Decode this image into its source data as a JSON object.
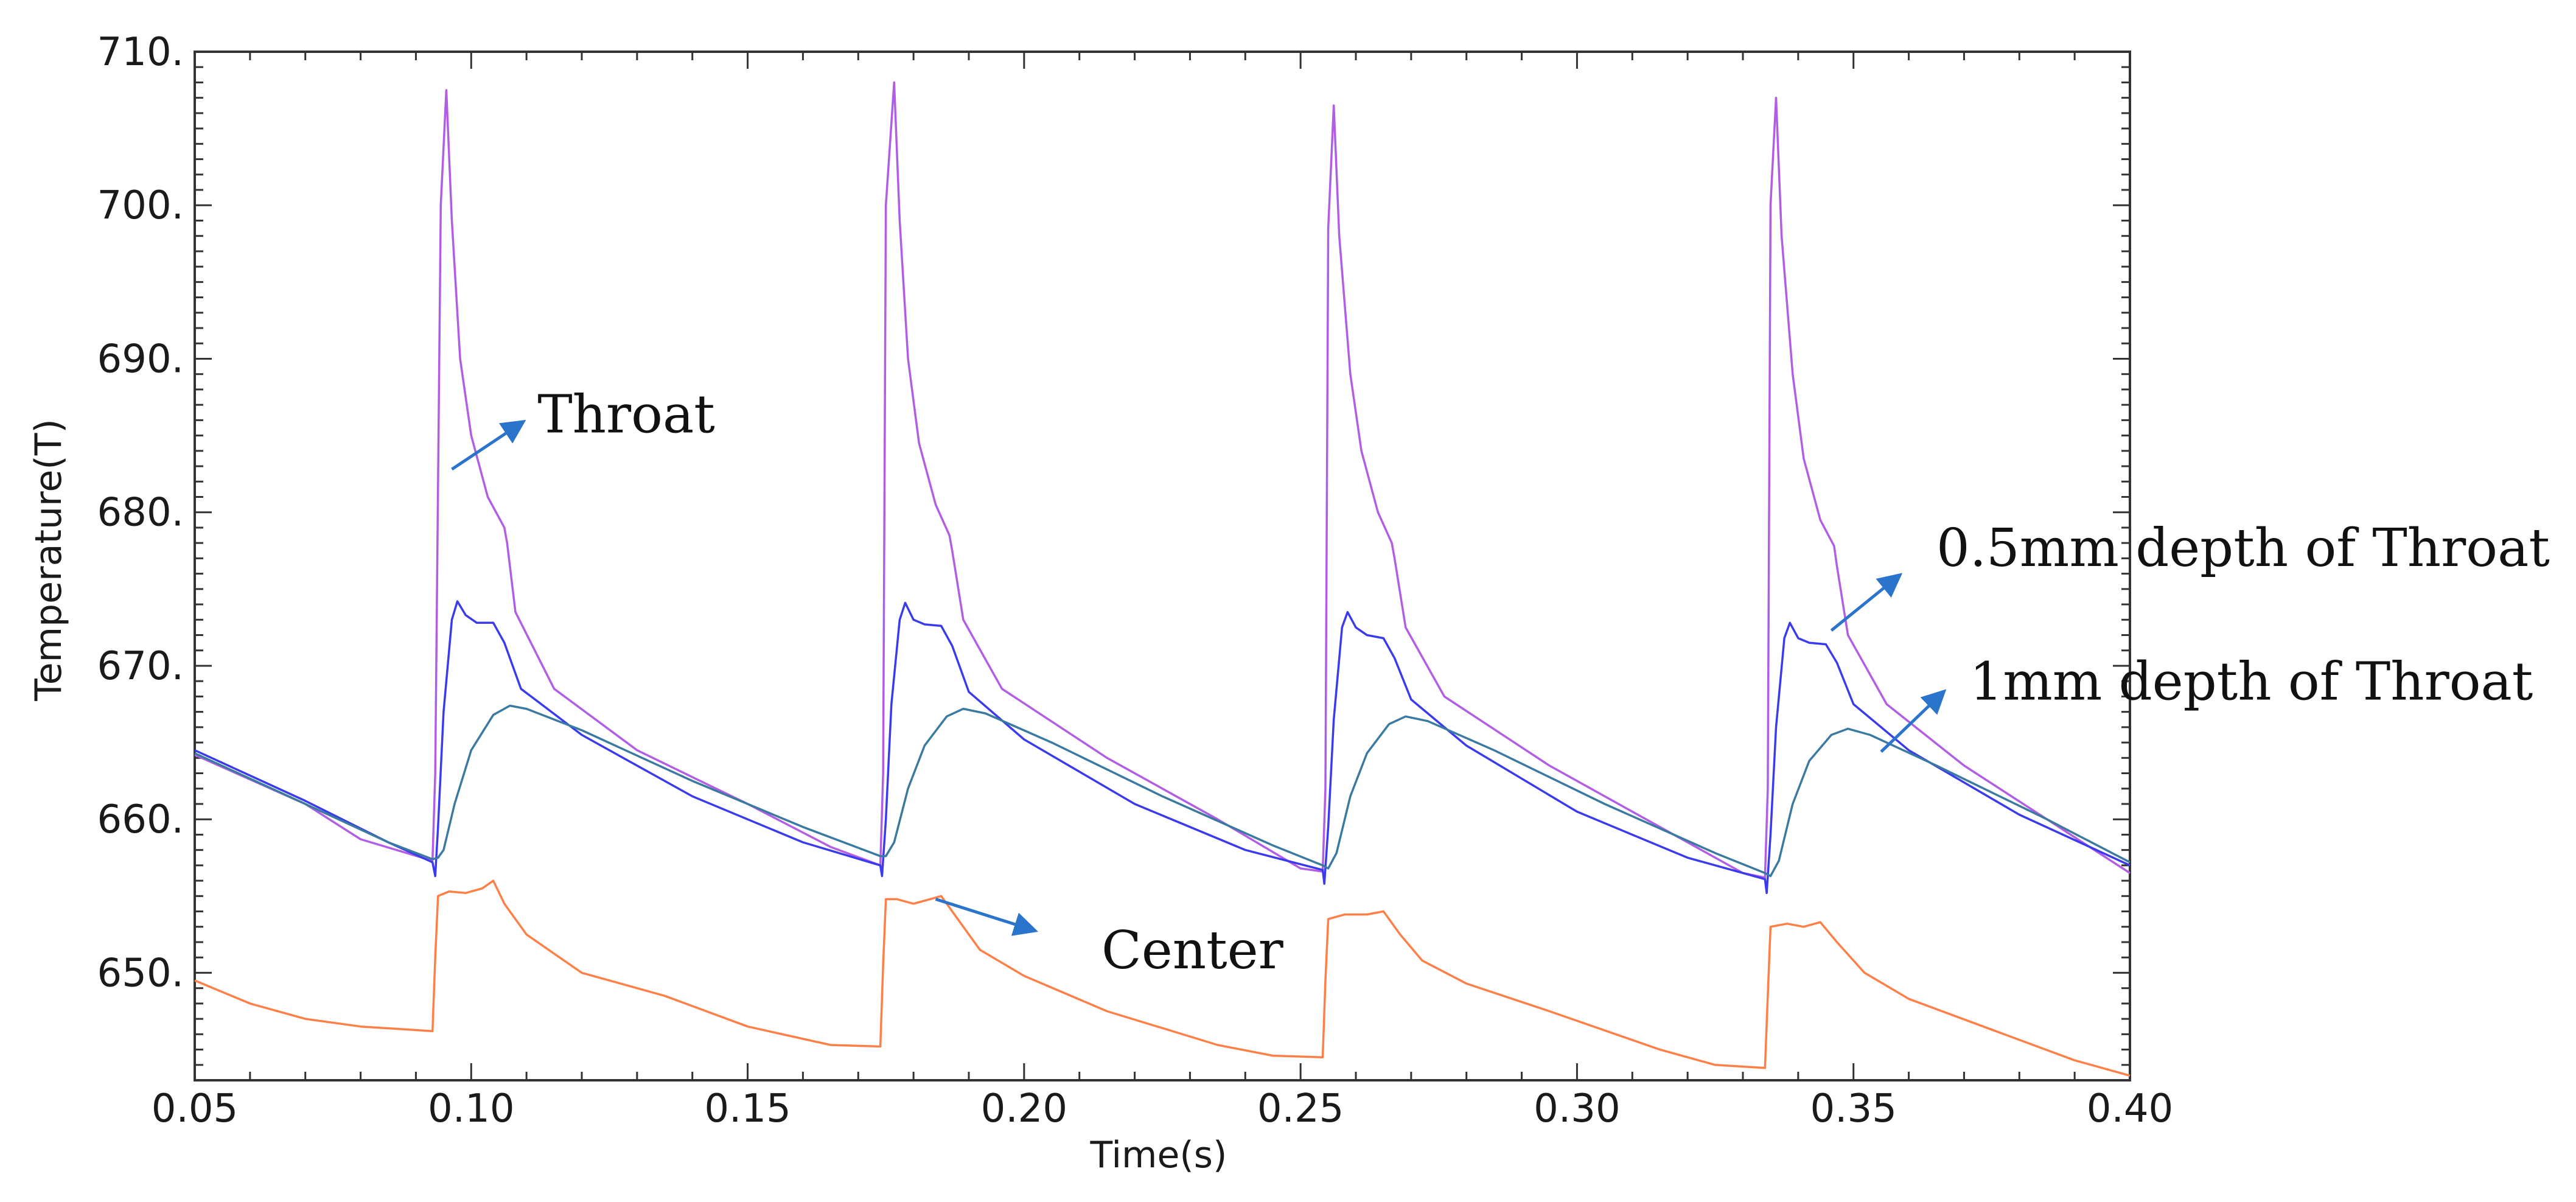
{
  "chart_data": {
    "type": "line",
    "title": "",
    "xlabel": "Time(s)",
    "ylabel": "Temperature(T)",
    "xlim": [
      0.05,
      0.4
    ],
    "ylim": [
      643,
      710
    ],
    "grid": false,
    "xticks": [
      0.05,
      0.1,
      0.15,
      0.2,
      0.25,
      0.3,
      0.35,
      0.4
    ],
    "xtick_labels": [
      "0.05",
      "0.10",
      "0.15",
      "0.20",
      "0.25",
      "0.30",
      "0.35",
      "0.40"
    ],
    "yticks": [
      650,
      660,
      670,
      680,
      690,
      700,
      710
    ],
    "ytick_labels": [
      "650.",
      "660.",
      "670.",
      "680.",
      "690.",
      "700.",
      "710."
    ],
    "series": [
      {
        "name": "Throat",
        "color": "#b25de6",
        "points": [
          [
            0.05,
            664.2
          ],
          [
            0.07,
            661.0
          ],
          [
            0.08,
            658.7
          ],
          [
            0.093,
            657.3
          ],
          [
            0.0935,
            663.0
          ],
          [
            0.0945,
            700.0
          ],
          [
            0.0955,
            707.5
          ],
          [
            0.0965,
            699.0
          ],
          [
            0.098,
            690.0
          ],
          [
            0.1,
            685.0
          ],
          [
            0.103,
            681.0
          ],
          [
            0.106,
            679.0
          ],
          [
            0.1065,
            678.0
          ],
          [
            0.108,
            673.5
          ],
          [
            0.115,
            668.5
          ],
          [
            0.13,
            664.5
          ],
          [
            0.15,
            661.0
          ],
          [
            0.165,
            658.2
          ],
          [
            0.174,
            657.0
          ],
          [
            0.1745,
            663.0
          ],
          [
            0.175,
            700.0
          ],
          [
            0.1765,
            708.0
          ],
          [
            0.1775,
            699.0
          ],
          [
            0.179,
            690.0
          ],
          [
            0.181,
            684.5
          ],
          [
            0.184,
            680.5
          ],
          [
            0.1865,
            678.5
          ],
          [
            0.187,
            677.5
          ],
          [
            0.189,
            673.0
          ],
          [
            0.196,
            668.5
          ],
          [
            0.215,
            664.0
          ],
          [
            0.235,
            660.0
          ],
          [
            0.25,
            656.8
          ],
          [
            0.254,
            656.6
          ],
          [
            0.2545,
            662.0
          ],
          [
            0.255,
            698.5
          ],
          [
            0.256,
            706.5
          ],
          [
            0.257,
            698.0
          ],
          [
            0.259,
            689.0
          ],
          [
            0.261,
            684.0
          ],
          [
            0.264,
            680.0
          ],
          [
            0.2665,
            678.0
          ],
          [
            0.267,
            677.0
          ],
          [
            0.269,
            672.5
          ],
          [
            0.276,
            668.0
          ],
          [
            0.295,
            663.5
          ],
          [
            0.315,
            659.5
          ],
          [
            0.33,
            656.5
          ],
          [
            0.334,
            656.2
          ],
          [
            0.3345,
            662.0
          ],
          [
            0.335,
            700.0
          ],
          [
            0.336,
            707.0
          ],
          [
            0.337,
            698.0
          ],
          [
            0.339,
            689.0
          ],
          [
            0.341,
            683.5
          ],
          [
            0.344,
            679.5
          ],
          [
            0.3465,
            677.8
          ],
          [
            0.347,
            676.5
          ],
          [
            0.349,
            672.0
          ],
          [
            0.356,
            667.5
          ],
          [
            0.37,
            663.5
          ],
          [
            0.385,
            660.0
          ],
          [
            0.4,
            656.5
          ]
        ]
      },
      {
        "name": "0.5mm depth of Throat",
        "color": "#3a3aee",
        "points": [
          [
            0.05,
            664.5
          ],
          [
            0.07,
            661.2
          ],
          [
            0.085,
            658.5
          ],
          [
            0.093,
            657.2
          ],
          [
            0.0935,
            656.3
          ],
          [
            0.094,
            659.5
          ],
          [
            0.095,
            667.0
          ],
          [
            0.0965,
            673.0
          ],
          [
            0.0975,
            674.2
          ],
          [
            0.099,
            673.3
          ],
          [
            0.101,
            672.8
          ],
          [
            0.104,
            672.8
          ],
          [
            0.106,
            671.5
          ],
          [
            0.109,
            668.5
          ],
          [
            0.12,
            665.5
          ],
          [
            0.14,
            661.5
          ],
          [
            0.16,
            658.5
          ],
          [
            0.174,
            657.0
          ],
          [
            0.1743,
            656.3
          ],
          [
            0.175,
            660.0
          ],
          [
            0.176,
            667.5
          ],
          [
            0.1775,
            673.0
          ],
          [
            0.1785,
            674.1
          ],
          [
            0.18,
            673.0
          ],
          [
            0.182,
            672.7
          ],
          [
            0.185,
            672.6
          ],
          [
            0.187,
            671.3
          ],
          [
            0.19,
            668.3
          ],
          [
            0.2,
            665.2
          ],
          [
            0.22,
            661.0
          ],
          [
            0.24,
            658.0
          ],
          [
            0.254,
            656.7
          ],
          [
            0.2543,
            655.8
          ],
          [
            0.255,
            659.5
          ],
          [
            0.256,
            666.5
          ],
          [
            0.2575,
            672.5
          ],
          [
            0.2585,
            673.5
          ],
          [
            0.26,
            672.5
          ],
          [
            0.262,
            672.0
          ],
          [
            0.265,
            671.8
          ],
          [
            0.267,
            670.5
          ],
          [
            0.27,
            667.8
          ],
          [
            0.28,
            664.8
          ],
          [
            0.3,
            660.5
          ],
          [
            0.32,
            657.5
          ],
          [
            0.334,
            656.1
          ],
          [
            0.3343,
            655.2
          ],
          [
            0.335,
            659.0
          ],
          [
            0.336,
            666.0
          ],
          [
            0.3375,
            671.8
          ],
          [
            0.3385,
            672.8
          ],
          [
            0.34,
            671.8
          ],
          [
            0.342,
            671.5
          ],
          [
            0.345,
            671.4
          ],
          [
            0.347,
            670.2
          ],
          [
            0.35,
            667.5
          ],
          [
            0.36,
            664.5
          ],
          [
            0.38,
            660.3
          ],
          [
            0.4,
            657.0
          ]
        ]
      },
      {
        "name": "1mm depth of Throat",
        "color": "#3a7aa0",
        "points": [
          [
            0.05,
            664.3
          ],
          [
            0.07,
            661.0
          ],
          [
            0.085,
            658.5
          ],
          [
            0.093,
            657.4
          ],
          [
            0.094,
            657.5
          ],
          [
            0.095,
            658.0
          ],
          [
            0.097,
            661.0
          ],
          [
            0.1,
            664.5
          ],
          [
            0.104,
            666.8
          ],
          [
            0.107,
            667.4
          ],
          [
            0.11,
            667.2
          ],
          [
            0.12,
            665.8
          ],
          [
            0.14,
            662.5
          ],
          [
            0.16,
            659.5
          ],
          [
            0.174,
            657.6
          ],
          [
            0.175,
            657.6
          ],
          [
            0.1765,
            658.5
          ],
          [
            0.179,
            662.0
          ],
          [
            0.182,
            664.8
          ],
          [
            0.186,
            666.7
          ],
          [
            0.189,
            667.2
          ],
          [
            0.193,
            666.9
          ],
          [
            0.205,
            665.0
          ],
          [
            0.225,
            661.5
          ],
          [
            0.245,
            658.3
          ],
          [
            0.254,
            657.0
          ],
          [
            0.255,
            656.8
          ],
          [
            0.2565,
            657.8
          ],
          [
            0.259,
            661.5
          ],
          [
            0.262,
            664.3
          ],
          [
            0.266,
            666.2
          ],
          [
            0.269,
            666.7
          ],
          [
            0.273,
            666.4
          ],
          [
            0.285,
            664.5
          ],
          [
            0.305,
            661.0
          ],
          [
            0.325,
            657.8
          ],
          [
            0.334,
            656.5
          ],
          [
            0.335,
            656.3
          ],
          [
            0.3365,
            657.3
          ],
          [
            0.339,
            661.0
          ],
          [
            0.342,
            663.8
          ],
          [
            0.346,
            665.5
          ],
          [
            0.349,
            665.9
          ],
          [
            0.353,
            665.5
          ],
          [
            0.365,
            663.5
          ],
          [
            0.385,
            660.0
          ],
          [
            0.4,
            657.2
          ]
        ]
      },
      {
        "name": "Center",
        "color": "#ff7f47",
        "points": [
          [
            0.05,
            649.5
          ],
          [
            0.06,
            648.0
          ],
          [
            0.07,
            647.0
          ],
          [
            0.08,
            646.5
          ],
          [
            0.093,
            646.2
          ],
          [
            0.0935,
            651.0
          ],
          [
            0.094,
            655.0
          ],
          [
            0.096,
            655.3
          ],
          [
            0.099,
            655.2
          ],
          [
            0.102,
            655.5
          ],
          [
            0.104,
            656.0
          ],
          [
            0.106,
            654.5
          ],
          [
            0.11,
            652.5
          ],
          [
            0.12,
            650.0
          ],
          [
            0.135,
            648.5
          ],
          [
            0.15,
            646.5
          ],
          [
            0.165,
            645.3
          ],
          [
            0.174,
            645.2
          ],
          [
            0.1745,
            650.5
          ],
          [
            0.175,
            654.8
          ],
          [
            0.177,
            654.8
          ],
          [
            0.18,
            654.5
          ],
          [
            0.183,
            654.8
          ],
          [
            0.185,
            655.0
          ],
          [
            0.188,
            653.5
          ],
          [
            0.192,
            651.5
          ],
          [
            0.2,
            649.8
          ],
          [
            0.215,
            647.5
          ],
          [
            0.235,
            645.3
          ],
          [
            0.245,
            644.6
          ],
          [
            0.254,
            644.5
          ],
          [
            0.2545,
            649.5
          ],
          [
            0.255,
            653.5
          ],
          [
            0.258,
            653.8
          ],
          [
            0.262,
            653.8
          ],
          [
            0.265,
            654.0
          ],
          [
            0.268,
            652.5
          ],
          [
            0.272,
            650.8
          ],
          [
            0.28,
            649.3
          ],
          [
            0.295,
            647.5
          ],
          [
            0.315,
            645.0
          ],
          [
            0.325,
            644.0
          ],
          [
            0.334,
            643.8
          ],
          [
            0.3345,
            648.5
          ],
          [
            0.335,
            653.0
          ],
          [
            0.338,
            653.2
          ],
          [
            0.341,
            653.0
          ],
          [
            0.344,
            653.3
          ],
          [
            0.347,
            652.0
          ],
          [
            0.352,
            650.0
          ],
          [
            0.36,
            648.3
          ],
          [
            0.375,
            646.3
          ],
          [
            0.39,
            644.3
          ],
          [
            0.4,
            643.3
          ]
        ]
      }
    ],
    "annotations": [
      {
        "text": "Throat",
        "x": 0.112,
        "y": 685.2,
        "arrow_from": [
          0.0965,
          682.8
        ],
        "arrow_to": [
          0.109,
          685.8
        ]
      },
      {
        "text": "0.5mm depth of Throat",
        "x": 0.365,
        "y": 676.5,
        "arrow_from": [
          0.346,
          672.3
        ],
        "arrow_to": [
          0.358,
          675.8
        ]
      },
      {
        "text": "1mm depth of Throat",
        "x": 0.371,
        "y": 667.8,
        "arrow_from": [
          0.355,
          664.4
        ],
        "arrow_to": [
          0.366,
          668.2
        ]
      },
      {
        "text": "Center",
        "x": 0.214,
        "y": 650.3,
        "arrow_from": [
          0.184,
          654.8
        ],
        "arrow_to": [
          0.2015,
          652.8
        ]
      }
    ],
    "colors": {
      "axis": "#333333",
      "annotation_arrow": "#2a74cc"
    }
  }
}
